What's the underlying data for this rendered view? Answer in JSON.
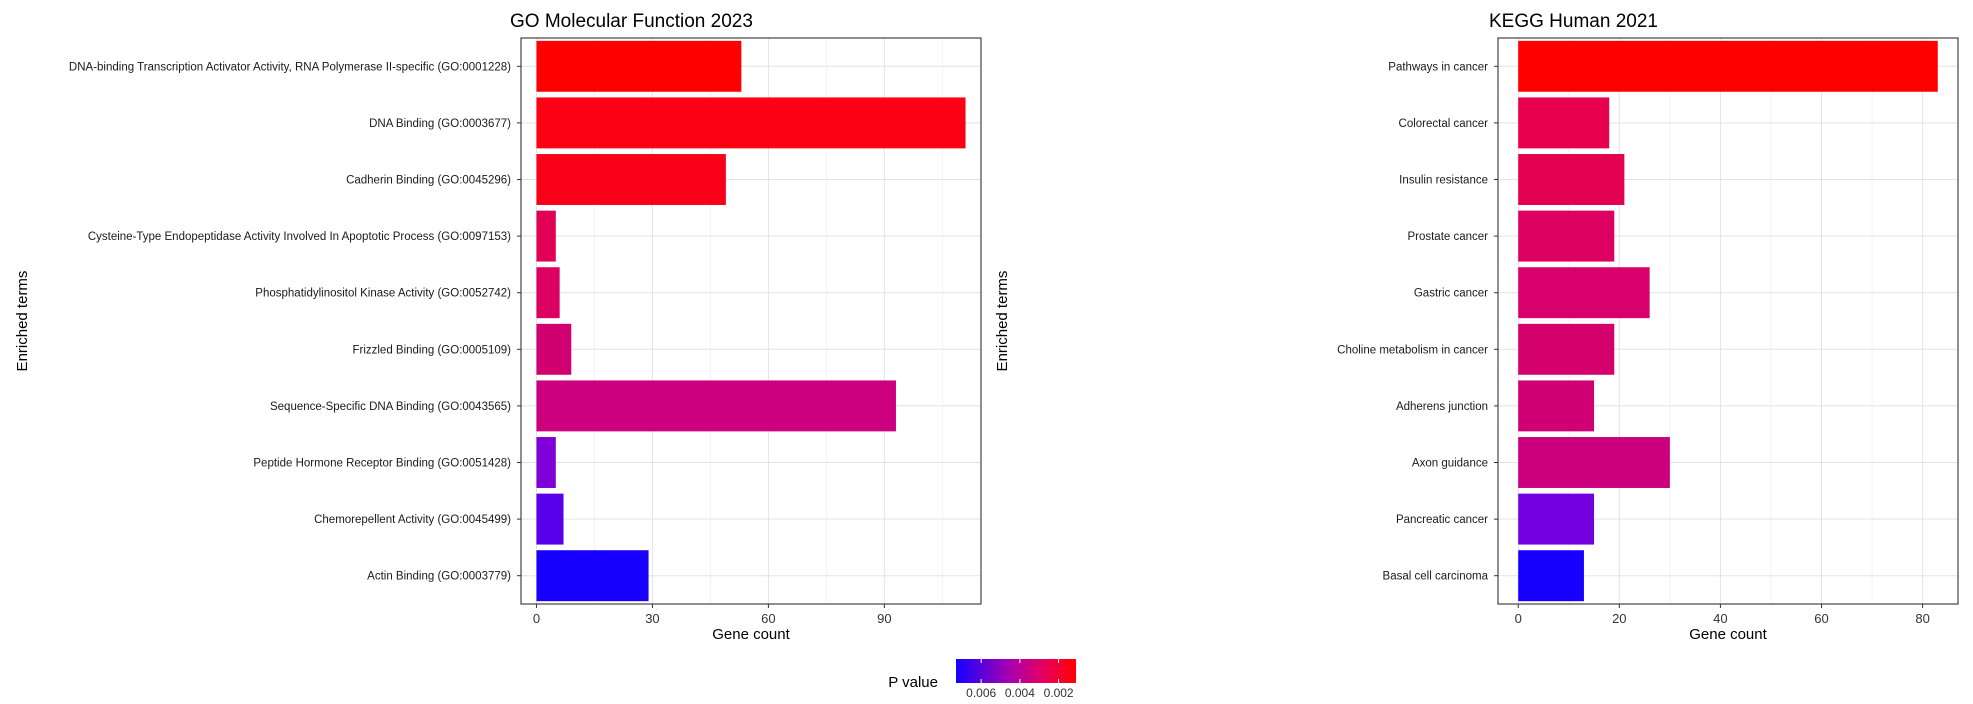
{
  "legend": {
    "title": "P value",
    "ticks": [
      {
        "label": "0.006",
        "value": 0.006
      },
      {
        "label": "0.004",
        "value": 0.004
      },
      {
        "label": "0.002",
        "value": 0.002
      }
    ],
    "range": [
      0.0073,
      0.0011
    ],
    "colors": {
      "low_p": "#ff0000",
      "mid_p": "#e8005a",
      "high_p": "#1600ff"
    }
  },
  "chart_data": [
    {
      "type": "bar",
      "orientation": "horizontal",
      "title": "GO Molecular Function 2023",
      "xlabel": "Gene count",
      "ylabel": "Enriched terms",
      "xlim": [
        -4,
        115
      ],
      "xticks": [
        0,
        30,
        60,
        90
      ],
      "grid": true,
      "categories": [
        "DNA-binding Transcription Activator Activity, RNA Polymerase II-specific (GO:0001228)",
        "DNA Binding (GO:0003677)",
        "Cadherin Binding (GO:0045296)",
        "Cysteine-Type Endopeptidase Activity Involved In Apoptotic Process (GO:0097153)",
        "Phosphatidylinositol Kinase Activity (GO:0052742)",
        "Frizzled Binding (GO:0005109)",
        "Sequence-Specific DNA Binding (GO:0043565)",
        "Peptide Hormone Receptor Binding (GO:0051428)",
        "Chemorepellent Activity (GO:0045499)",
        "Actin Binding (GO:0003779)"
      ],
      "values": [
        53,
        111,
        49,
        5,
        6,
        9,
        93,
        5,
        7,
        29
      ],
      "colors": [
        "#ff0000",
        "#fc0014",
        "#f8001a",
        "#e00056",
        "#dc0062",
        "#d00070",
        "#cc007e",
        "#8000d8",
        "#5800ec",
        "#1800ff"
      ]
    },
    {
      "type": "bar",
      "orientation": "horizontal",
      "title": "KEGG Human 2021",
      "xlabel": "Gene count",
      "ylabel": "Enriched terms",
      "xlim": [
        -4,
        87
      ],
      "xticks": [
        0,
        20,
        40,
        60,
        80
      ],
      "grid": true,
      "categories": [
        "Pathways in cancer",
        "Colorectal cancer",
        "Insulin resistance",
        "Prostate cancer",
        "Gastric cancer",
        "Choline metabolism in cancer",
        "Adherens junction",
        "Axon guidance",
        "Pancreatic cancer",
        "Basal cell carcinoma"
      ],
      "values": [
        83,
        18,
        21,
        19,
        26,
        19,
        15,
        30,
        15,
        13
      ],
      "colors": [
        "#ff0000",
        "#e8004e",
        "#e40050",
        "#dc0060",
        "#d8006a",
        "#d4006c",
        "#d00074",
        "#cc007c",
        "#7400e0",
        "#1800ff"
      ]
    }
  ]
}
